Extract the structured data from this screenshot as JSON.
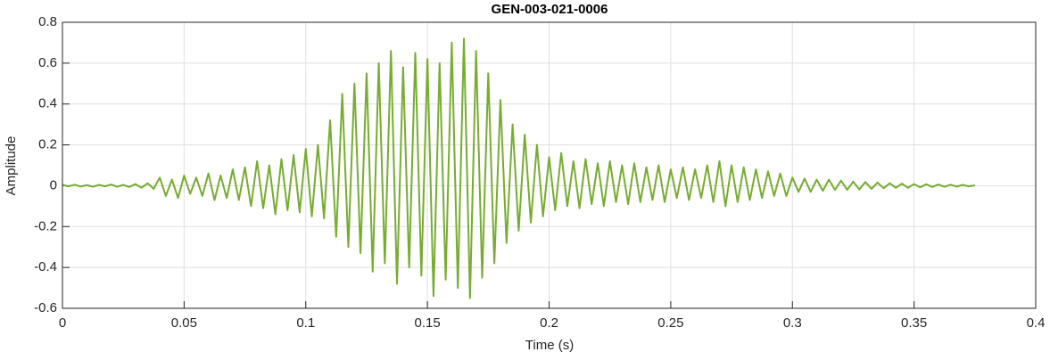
{
  "chart_data": {
    "type": "line",
    "title": "GEN-003-021-0006",
    "x_label": "Time (s)",
    "y_label": "Amplitude",
    "x": [
      0,
      0.0025,
      0.005,
      0.0075,
      0.01,
      0.0125,
      0.015,
      0.0175,
      0.02,
      0.0225,
      0.025,
      0.0275,
      0.03,
      0.0325,
      0.035,
      0.0375,
      0.04,
      0.0425,
      0.045,
      0.0475,
      0.05,
      0.0525,
      0.055,
      0.0575,
      0.06,
      0.0625,
      0.065,
      0.0675,
      0.07,
      0.0725,
      0.075,
      0.0775,
      0.08,
      0.0825,
      0.085,
      0.0875,
      0.09,
      0.0925,
      0.095,
      0.0975,
      0.1,
      0.1025,
      0.105,
      0.1075,
      0.11,
      0.1125,
      0.115,
      0.1175,
      0.12,
      0.1225,
      0.125,
      0.1275,
      0.13,
      0.1325,
      0.135,
      0.1375,
      0.14,
      0.1425,
      0.145,
      0.1475,
      0.15,
      0.1525,
      0.155,
      0.1575,
      0.16,
      0.1625,
      0.165,
      0.1675,
      0.17,
      0.1725,
      0.175,
      0.1775,
      0.18,
      0.1825,
      0.185,
      0.1875,
      0.19,
      0.1925,
      0.195,
      0.1975,
      0.2,
      0.2025,
      0.205,
      0.2075,
      0.21,
      0.2125,
      0.215,
      0.2175,
      0.22,
      0.2225,
      0.225,
      0.2275,
      0.23,
      0.2325,
      0.235,
      0.2375,
      0.24,
      0.2425,
      0.245,
      0.2475,
      0.25,
      0.2525,
      0.255,
      0.2575,
      0.26,
      0.2625,
      0.265,
      0.2675,
      0.27,
      0.2725,
      0.275,
      0.2775,
      0.28,
      0.2825,
      0.285,
      0.2875,
      0.29,
      0.2925,
      0.295,
      0.2975,
      0.3,
      0.3025,
      0.305,
      0.3075,
      0.31,
      0.3125,
      0.315,
      0.3175,
      0.32,
      0.3225,
      0.325,
      0.3275,
      0.33,
      0.3325,
      0.335,
      0.3375,
      0.34,
      0.3425,
      0.345,
      0.3475,
      0.35,
      0.3525,
      0.355,
      0.3575,
      0.36,
      0.3625,
      0.365,
      0.3675,
      0.37,
      0.3725,
      0.375
    ],
    "series": [
      {
        "name": "Amplitude",
        "color": "#77ac30",
        "values": [
          0.004,
          -0.003,
          0.005,
          -0.004,
          0.003,
          -0.005,
          0.004,
          -0.003,
          0.006,
          -0.005,
          0.004,
          -0.006,
          0.008,
          -0.01,
          0.012,
          -0.015,
          0.04,
          -0.05,
          0.03,
          -0.06,
          0.05,
          -0.04,
          0.04,
          -0.05,
          0.06,
          -0.07,
          0.05,
          -0.06,
          0.08,
          -0.07,
          0.09,
          -0.1,
          0.12,
          -0.11,
          0.1,
          -0.14,
          0.13,
          -0.12,
          0.15,
          -0.13,
          0.18,
          -0.15,
          0.2,
          -0.16,
          0.32,
          -0.25,
          0.45,
          -0.3,
          0.5,
          -0.33,
          0.55,
          -0.42,
          0.6,
          -0.38,
          0.66,
          -0.48,
          0.58,
          -0.4,
          0.65,
          -0.44,
          0.62,
          -0.54,
          0.6,
          -0.46,
          0.7,
          -0.5,
          0.72,
          -0.55,
          0.66,
          -0.45,
          0.55,
          -0.38,
          0.42,
          -0.28,
          0.3,
          -0.22,
          0.25,
          -0.18,
          0.2,
          -0.15,
          0.14,
          -0.12,
          0.16,
          -0.1,
          0.12,
          -0.11,
          0.13,
          -0.09,
          0.11,
          -0.1,
          0.12,
          -0.08,
          0.1,
          -0.09,
          0.11,
          -0.08,
          0.09,
          -0.07,
          0.1,
          -0.08,
          0.08,
          -0.06,
          0.09,
          -0.07,
          0.08,
          -0.06,
          0.1,
          -0.08,
          0.12,
          -0.1,
          0.1,
          -0.08,
          0.09,
          -0.07,
          0.08,
          -0.06,
          0.07,
          -0.05,
          0.06,
          -0.05,
          0.04,
          -0.03,
          0.035,
          -0.03,
          0.03,
          -0.025,
          0.03,
          -0.02,
          0.025,
          -0.02,
          0.02,
          -0.018,
          0.018,
          -0.015,
          0.015,
          -0.012,
          0.012,
          -0.01,
          0.01,
          -0.01,
          0.008,
          -0.008,
          0.007,
          -0.006,
          0.006,
          -0.005,
          0.005,
          -0.004,
          0.004,
          -0.003,
          0.002
        ]
      }
    ],
    "xlim": [
      0,
      0.4
    ],
    "ylim": [
      -0.6,
      0.8
    ],
    "xticks": [
      0,
      0.05,
      0.1,
      0.15,
      0.2,
      0.25,
      0.3,
      0.35,
      0.4
    ],
    "yticks": [
      -0.6,
      -0.4,
      -0.2,
      0,
      0.2,
      0.4,
      0.6,
      0.8
    ],
    "grid": true
  }
}
